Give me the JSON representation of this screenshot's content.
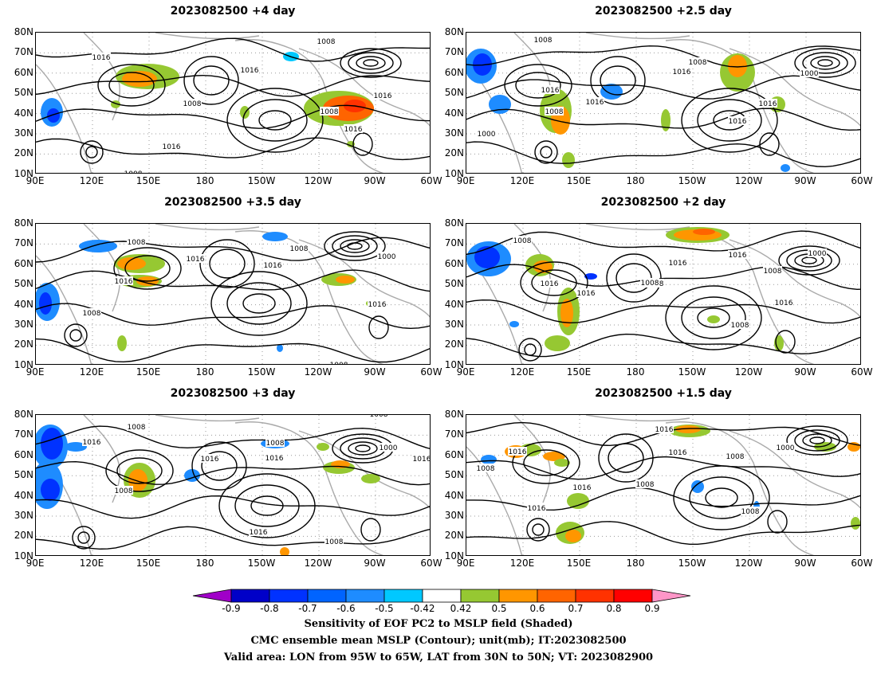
{
  "panels": [
    {
      "title": "2023082500  +4 day",
      "contours": [
        "1016",
        "1016",
        "1008",
        "1016",
        "1008",
        "1016",
        "1008",
        "1016",
        "1008"
      ]
    },
    {
      "title": "2023082500  +2.5 day",
      "contours": [
        "1008",
        "1008",
        "1016",
        "1016",
        "1008",
        "1016",
        "1016",
        "1000",
        "1016",
        "1000"
      ]
    },
    {
      "title": "2023082500  +3.5 day",
      "contours": [
        "1008",
        "1008",
        "1016",
        "1016",
        "1016",
        "1000",
        "1008",
        "1016",
        "1008"
      ]
    },
    {
      "title": "2023082500  +2 day",
      "contours": [
        "1008",
        "1016",
        "1016",
        "1016",
        "1008",
        "1016",
        "1008",
        "1000",
        "1008",
        "1016",
        "1008"
      ]
    },
    {
      "title": "2023082500  +3 day",
      "contours": [
        "1008",
        "1016",
        "1008",
        "1016",
        "1008",
        "1016",
        "1000",
        "1016",
        "1016",
        "1008",
        "1008"
      ]
    },
    {
      "title": "2023082500  +1.5 day",
      "contours": [
        "1008",
        "1016",
        "1016",
        "1008",
        "1016",
        "1000",
        "1008",
        "1016",
        "1008",
        "1016"
      ]
    }
  ],
  "axes": {
    "lat_labels": [
      "80N",
      "70N",
      "60N",
      "50N",
      "40N",
      "30N",
      "20N",
      "10N"
    ],
    "lon_labels": [
      "90E",
      "120E",
      "150E",
      "180",
      "150W",
      "120W",
      "90W",
      "60W"
    ]
  },
  "colorbar": {
    "labels": [
      "-0.9",
      "-0.8",
      "-0.7",
      "-0.6",
      "-0.5",
      "-0.42",
      "0.42",
      "0.5",
      "0.6",
      "0.7",
      "0.8",
      "0.9"
    ],
    "colors": [
      "#a000c8",
      "#0000c8",
      "#0032ff",
      "#0064ff",
      "#1e8cff",
      "#00c8ff",
      "#ffffff",
      "#96c832",
      "#ff9600",
      "#ff6400",
      "#ff3200",
      "#ff0000",
      "#ff96c8"
    ]
  },
  "captions": {
    "line1": "Sensitivity of EOF PC2 to MSLP field (Shaded)",
    "line2": "CMC ensemble mean MSLP (Contour); unit(mb); IT:2023082500",
    "line3": "Valid area: LON from 95W to 65W, LAT from 30N to 50N; VT: 2023082900"
  }
}
